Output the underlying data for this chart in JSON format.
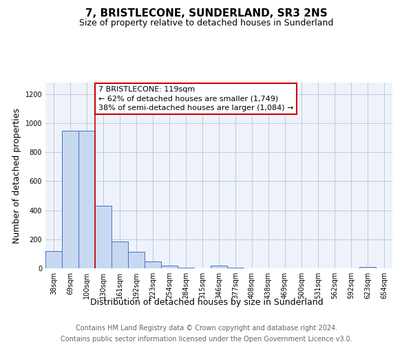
{
  "title": "7, BRISTLECONE, SUNDERLAND, SR3 2NS",
  "subtitle": "Size of property relative to detached houses in Sunderland",
  "xlabel": "Distribution of detached houses by size in Sunderland",
  "ylabel": "Number of detached properties",
  "footer_line1": "Contains HM Land Registry data © Crown copyright and database right 2024.",
  "footer_line2": "Contains public sector information licensed under the Open Government Licence v3.0.",
  "bar_labels": [
    "38sqm",
    "69sqm",
    "100sqm",
    "130sqm",
    "161sqm",
    "192sqm",
    "223sqm",
    "254sqm",
    "284sqm",
    "315sqm",
    "346sqm",
    "377sqm",
    "408sqm",
    "438sqm",
    "469sqm",
    "500sqm",
    "531sqm",
    "562sqm",
    "592sqm",
    "623sqm",
    "654sqm"
  ],
  "bar_values": [
    120,
    950,
    950,
    430,
    185,
    115,
    47,
    20,
    5,
    0,
    20,
    5,
    0,
    0,
    0,
    0,
    0,
    0,
    0,
    10,
    0
  ],
  "bar_color": "#c6d9f1",
  "bar_edge_color": "#4472c4",
  "bg_color": "#eef3fb",
  "annotation_box_text": "7 BRISTLECONE: 119sqm\n← 62% of detached houses are smaller (1,749)\n38% of semi-detached houses are larger (1,084) →",
  "annotation_box_edge_color": "#cc0000",
  "redline_x": 2.5,
  "ylim": [
    0,
    1280
  ],
  "yticks": [
    0,
    200,
    400,
    600,
    800,
    1000,
    1200
  ],
  "grid_color": "#c0c8d8",
  "title_fontsize": 11,
  "subtitle_fontsize": 9,
  "tick_fontsize": 7,
  "label_fontsize": 9,
  "footer_fontsize": 7,
  "ann_fontsize": 8
}
